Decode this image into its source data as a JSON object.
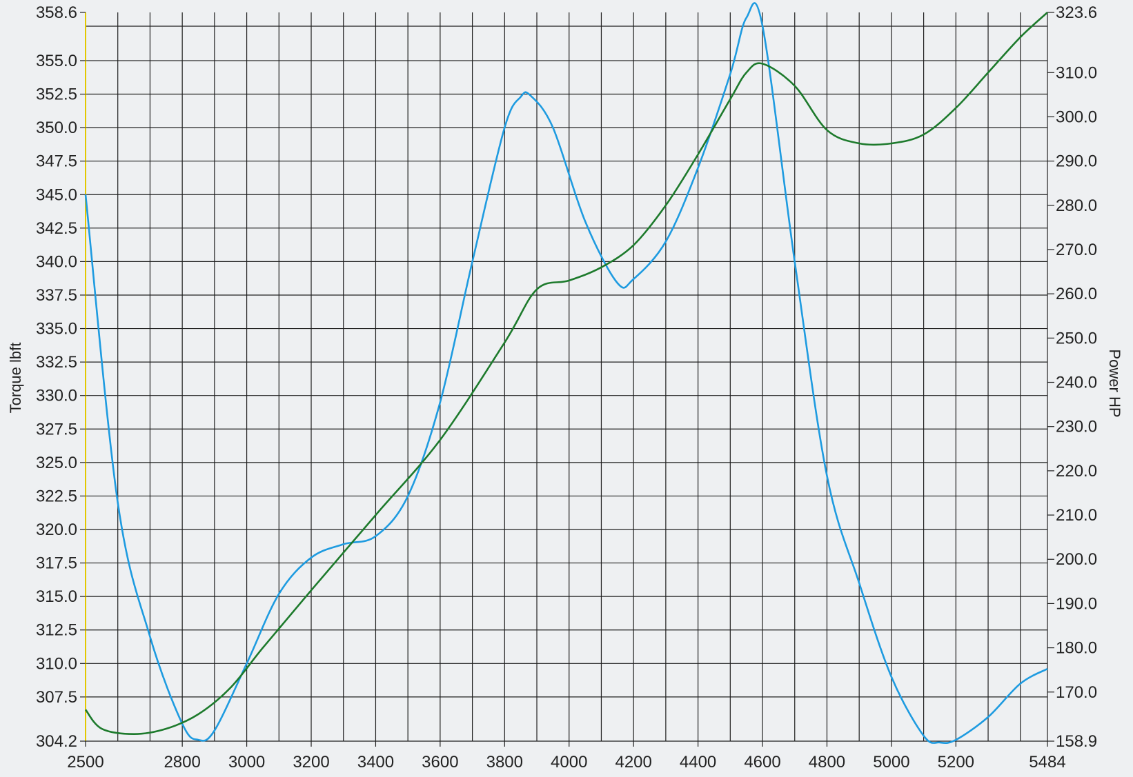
{
  "chart_data": {
    "type": "line",
    "title": "",
    "xlabel": "",
    "ylabel_left": "Torque lbft",
    "ylabel_right": "Power HP",
    "xlim": [
      2500,
      5484
    ],
    "ylim_left": [
      304.2,
      358.6
    ],
    "ylim_right": [
      158.9,
      323.6
    ],
    "x_ticks": [
      "2500",
      "2800",
      "3000",
      "3200",
      "3400",
      "3600",
      "3800",
      "4000",
      "4200",
      "4400",
      "4600",
      "4800",
      "5000",
      "5200",
      "5484"
    ],
    "left_ticks": [
      "358.6",
      "355.0",
      "352.5",
      "350.0",
      "347.5",
      "345.0",
      "342.5",
      "340.0",
      "337.5",
      "335.0",
      "332.5",
      "330.0",
      "327.5",
      "325.0",
      "322.5",
      "320.0",
      "317.5",
      "315.0",
      "312.5",
      "310.0",
      "307.5",
      "304.2"
    ],
    "right_ticks": [
      "323.6",
      "310.0",
      "300.0",
      "290.0",
      "280.0",
      "270.0",
      "260.0",
      "250.0",
      "240.0",
      "230.0",
      "220.0",
      "210.0",
      "200.0",
      "190.0",
      "180.0",
      "170.0",
      "158.9"
    ],
    "grid": true,
    "series": [
      {
        "axis": "left",
        "color": "#1e9be0",
        "x": [
          2500,
          2600,
          2700,
          2800,
          2850,
          2900,
          3000,
          3100,
          3200,
          3300,
          3400,
          3500,
          3600,
          3700,
          3800,
          3850,
          3880,
          3950,
          4050,
          4150,
          4200,
          4300,
          4400,
          4500,
          4550,
          4600,
          4700,
          4800,
          4900,
          5000,
          5100,
          5150,
          5200,
          5300,
          5400,
          5484
        ],
        "y": [
          345.0,
          322.0,
          312.0,
          305.5,
          304.3,
          305.0,
          310.0,
          315.2,
          317.9,
          318.9,
          319.5,
          322.5,
          329.5,
          340.0,
          350.0,
          352.3,
          352.4,
          350.0,
          343.0,
          338.4,
          338.7,
          341.5,
          347.0,
          354.0,
          358.2,
          357.6,
          340.0,
          324.0,
          316.0,
          309.0,
          304.6,
          304.1,
          304.3,
          306.0,
          308.5,
          309.6
        ]
      },
      {
        "axis": "right",
        "color": "#1d7a2c",
        "x": [
          2500,
          2550,
          2650,
          2750,
          2850,
          2950,
          3050,
          3200,
          3400,
          3600,
          3800,
          3900,
          4000,
          4100,
          4200,
          4300,
          4400,
          4500,
          4550,
          4600,
          4700,
          4800,
          4900,
          5000,
          5100,
          5200,
          5300,
          5400,
          5484
        ],
        "y": [
          166.0,
          161.7,
          160.5,
          161.7,
          165.0,
          171.0,
          180.0,
          193.0,
          210.0,
          227.0,
          249.0,
          261.0,
          263.0,
          266.0,
          271.0,
          280.0,
          291.5,
          304.0,
          310.0,
          312.0,
          307.0,
          297.0,
          294.0,
          294.0,
          296.0,
          302.0,
          310.0,
          318.0,
          323.6
        ]
      }
    ]
  }
}
